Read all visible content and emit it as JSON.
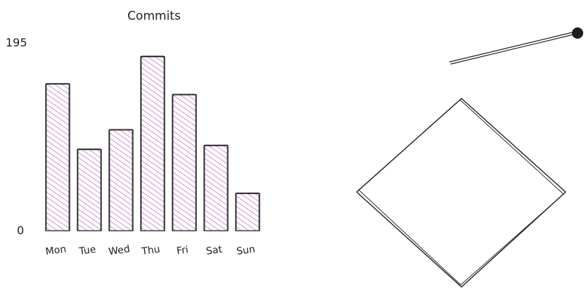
{
  "chart_data": {
    "type": "bar",
    "title": "Commits",
    "categories": [
      "Mon",
      "Tue",
      "Wed",
      "Thu",
      "Fri",
      "Sat",
      "Sun"
    ],
    "values": [
      150,
      83,
      103,
      178,
      139,
      87,
      38
    ],
    "y_max_label": "195",
    "y_min_label": "0",
    "ylim": [
      0,
      195
    ],
    "bar_fill": "#d9a6e8",
    "hatch_color": "#b266cc",
    "stroke": "#1e1e1e"
  },
  "shapes": {
    "stroke": "#1e1e1e",
    "line": {
      "type": "line",
      "end_marker": "dot"
    },
    "diamond": {
      "type": "diamond",
      "fill": "none"
    }
  }
}
